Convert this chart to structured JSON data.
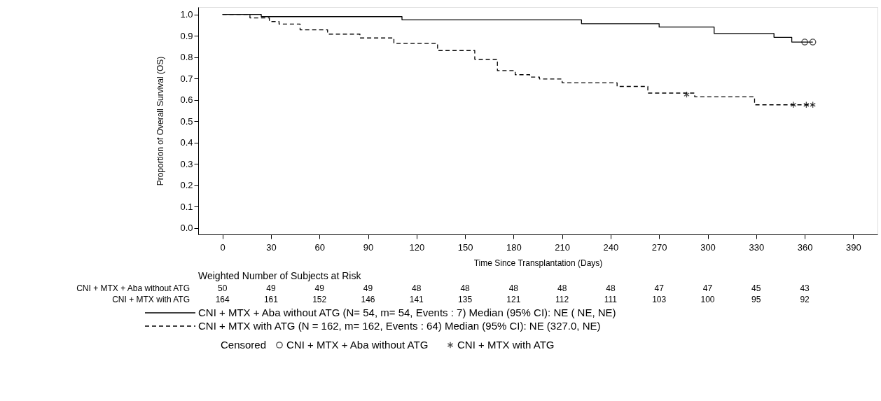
{
  "chart_data": {
    "type": "step",
    "xlabel": "Time Since Transplantation (Days)",
    "ylabel": "Proportion of Overall Survival (OS)",
    "xlim": [
      -15,
      405
    ],
    "xticks": [
      0,
      30,
      60,
      90,
      120,
      150,
      180,
      210,
      240,
      270,
      300,
      330,
      360,
      390
    ],
    "ylim": [
      -0.03,
      1.035
    ],
    "yticks": [
      {
        "value": 0,
        "label": "0.0"
      },
      0.1,
      0.2,
      0.3,
      0.4,
      0.5,
      0.6,
      0.7,
      0.8,
      0.9,
      {
        "value": 1,
        "label": "1.0"
      }
    ],
    "legend": "bottom",
    "legend_title": "Censored",
    "series": [
      {
        "name": "CNI + MTX + Aba without ATG (N= 54, m= 54, Events : 7)  Median (95% CI):  NE (  NE,  NE)",
        "color": "#000000",
        "line_style": "solid",
        "x": [
          0,
          24,
          111,
          222,
          270,
          304,
          341,
          352,
          365
        ],
        "values": [
          1.0,
          0.99,
          0.975,
          0.957,
          0.941,
          0.911,
          0.893,
          0.871,
          0.871
        ]
      },
      {
        "name": "CNI + MTX with ATG (N = 162, m= 162, Events : 64)  Median (95% CI):  NE  (327.0,  NE)",
        "color": "#000000",
        "line_style": "dashed",
        "x": [
          0,
          17,
          29,
          35,
          48,
          65,
          85,
          106,
          133,
          156,
          170,
          181,
          190,
          196,
          210,
          244,
          263,
          292,
          329,
          365
        ],
        "values": [
          1.0,
          0.984,
          0.967,
          0.955,
          0.928,
          0.908,
          0.89,
          0.864,
          0.831,
          0.79,
          0.737,
          0.718,
          0.707,
          0.698,
          0.68,
          0.663,
          0.632,
          0.614,
          0.577,
          0.577
        ]
      },
      {
        "name": "CNI + MTX + Aba without ATG",
        "type": "scatter",
        "color": "#000000",
        "marker": "circle",
        "x": [
          360,
          365
        ],
        "values": [
          0.871,
          0.871
        ]
      },
      {
        "name": "CNI + MTX with ATG",
        "type": "scatter",
        "color": "#000000",
        "marker": "cross",
        "x": [
          287,
          353,
          361,
          365
        ],
        "values": [
          0.625,
          0.577,
          0.577,
          0.577
        ]
      }
    ],
    "annotations": [
      "Weighted Number of Subjects at Risk",
      "CNI + MTX + Aba without ATG",
      "50",
      "49",
      "49",
      "49",
      "48",
      "48",
      "48",
      "48",
      "48",
      "47",
      "47",
      "45",
      "43",
      "CNI + MTX with ATG",
      "164",
      "161",
      "152",
      "146",
      "141",
      "135",
      "121",
      "112",
      "111",
      "103",
      "100",
      "95",
      "92"
    ]
  }
}
